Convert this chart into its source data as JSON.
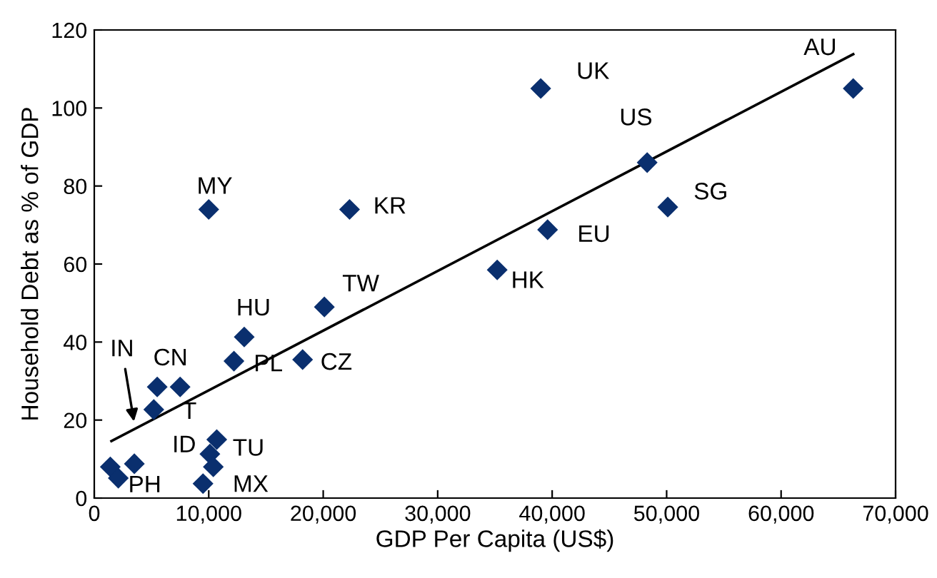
{
  "chart_data": {
    "type": "scatter",
    "xlabel": "GDP Per Capita (US$)",
    "ylabel": "Household Debt as % of GDP",
    "series": [
      {
        "color": "#0a2f6e",
        "marker": "diamond",
        "x": [
          66300,
          39000,
          48300,
          50100,
          39600,
          35200,
          22300,
          10000,
          20100,
          18200,
          13100,
          12200,
          5500,
          7500,
          5200,
          10700,
          10100,
          10400,
          9500,
          1400,
          2100,
          3500
        ],
        "values": [
          105,
          105,
          86,
          74.6,
          68.8,
          58.5,
          74,
          74,
          49,
          35.5,
          41.3,
          35.1,
          28.5,
          28.5,
          22.7,
          15,
          11.3,
          8,
          3.7,
          8,
          5.1,
          8.8
        ],
        "value_labels": [
          "AU",
          "UK",
          "US",
          "SG",
          "EU",
          "HK",
          "KR",
          "MY",
          "TW",
          "CZ",
          "HU",
          "PL",
          "CN",
          "T",
          "IN",
          "TU",
          "ID",
          null,
          "MX",
          null,
          "PH",
          null
        ]
      },
      {
        "type": "line",
        "color": "#000000",
        "marker": "none",
        "x": [
          1500,
          66300
        ],
        "values": [
          14.6,
          113.8
        ]
      }
    ],
    "xlim": [
      0,
      70000
    ],
    "xticks": [
      {
        "value": 0,
        "label": "0"
      },
      {
        "value": 10000,
        "label": "10,000"
      },
      {
        "value": 20000,
        "label": "20,000"
      },
      {
        "value": 30000,
        "label": "30,000"
      },
      {
        "value": 40000,
        "label": "40,000"
      },
      {
        "value": 50000,
        "label": "50,000"
      },
      {
        "value": 60000,
        "label": "60,000"
      },
      {
        "value": 70000,
        "label": "70,000"
      }
    ],
    "ylim": [
      0,
      120
    ],
    "yticks": [
      0,
      20,
      40,
      60,
      80,
      100,
      120
    ],
    "grid": false,
    "legend": false
  }
}
